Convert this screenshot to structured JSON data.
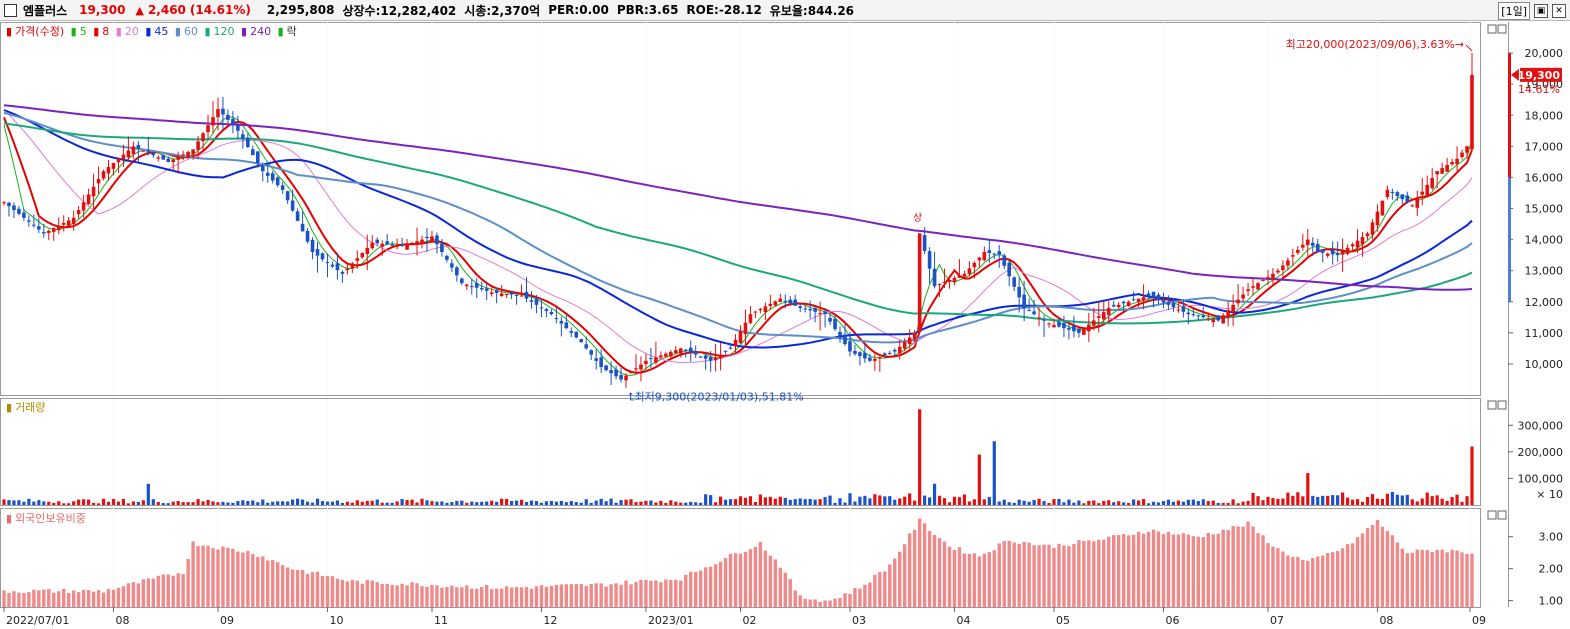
{
  "header": {
    "name": "엠플러스",
    "price": "19,300",
    "arrow": "▲",
    "change": "2,460",
    "change_pct": "(14.61%)",
    "volume": "2,295,808",
    "listed": "상장수:12,282,402",
    "marketcap": "시총:2,370억",
    "per": "PER:0.00",
    "pbr": "PBR:3.65",
    "roe": "ROE:-28.12",
    "reserve": "유보율:844.26",
    "period": "1일"
  },
  "legend": {
    "price_label": "가격(수정)",
    "ma": [
      {
        "label": "5",
        "color": "#19b219"
      },
      {
        "label": "8",
        "color": "#e60000"
      },
      {
        "label": "20",
        "color": "#e27ad6"
      },
      {
        "label": "45",
        "color": "#0a28d8"
      },
      {
        "label": "60",
        "color": "#5e8fc8"
      },
      {
        "label": "120",
        "color": "#1ca87c"
      },
      {
        "label": "240",
        "color": "#7b22c0"
      }
    ],
    "extra": "락",
    "volume_label": "거래량",
    "foreign_label": "외국인보유비중"
  },
  "annotations": {
    "high": "최고20,000(2023/09/06),3.63%",
    "low": "최저9,300(2023/01/03),51.81%",
    "event": "상"
  },
  "price_tag": {
    "value": "19,300",
    "pct": "14.61%"
  },
  "chart_data": [
    {
      "type": "candlestick",
      "title": "가격(수정)",
      "ylim": [
        9000,
        21000
      ],
      "yticks": [
        "10,000",
        "11,000",
        "12,000",
        "13,000",
        "14,000",
        "15,000",
        "16,000",
        "17,000",
        "18,000",
        "19,000",
        "20,000"
      ],
      "xticks": [
        "2022/07/01",
        "08",
        "09",
        "10",
        "11",
        "12",
        "2023/01",
        "02",
        "03",
        "04",
        "05",
        "06",
        "07",
        "08",
        "09"
      ],
      "keypoints": [
        {
          "i": 0,
          "v": 15200
        },
        {
          "i": 8,
          "v": 14200
        },
        {
          "i": 14,
          "v": 14700
        },
        {
          "i": 20,
          "v": 16200
        },
        {
          "i": 26,
          "v": 17000
        },
        {
          "i": 33,
          "v": 16500
        },
        {
          "i": 38,
          "v": 16900
        },
        {
          "i": 43,
          "v": 18200
        },
        {
          "i": 47,
          "v": 17500
        },
        {
          "i": 52,
          "v": 16200
        },
        {
          "i": 56,
          "v": 15600
        },
        {
          "i": 62,
          "v": 13600
        },
        {
          "i": 68,
          "v": 12900
        },
        {
          "i": 74,
          "v": 13900
        },
        {
          "i": 80,
          "v": 13800
        },
        {
          "i": 86,
          "v": 14100
        },
        {
          "i": 92,
          "v": 12600
        },
        {
          "i": 98,
          "v": 12300
        },
        {
          "i": 104,
          "v": 12200
        },
        {
          "i": 110,
          "v": 11600
        },
        {
          "i": 116,
          "v": 10700
        },
        {
          "i": 120,
          "v": 9900
        },
        {
          "i": 124,
          "v": 9500
        },
        {
          "i": 129,
          "v": 10100
        },
        {
          "i": 136,
          "v": 10500
        },
        {
          "i": 142,
          "v": 10100
        },
        {
          "i": 146,
          "v": 10500
        },
        {
          "i": 150,
          "v": 11600
        },
        {
          "i": 156,
          "v": 12100
        },
        {
          "i": 160,
          "v": 11800
        },
        {
          "i": 165,
          "v": 11600
        },
        {
          "i": 170,
          "v": 10400
        },
        {
          "i": 174,
          "v": 10100
        },
        {
          "i": 179,
          "v": 10400
        },
        {
          "i": 183,
          "v": 11000
        },
        {
          "i": 184,
          "v": 14200
        },
        {
          "i": 187,
          "v": 12500
        },
        {
          "i": 193,
          "v": 12900
        },
        {
          "i": 197,
          "v": 13600
        },
        {
          "i": 200,
          "v": 13500
        },
        {
          "i": 205,
          "v": 11800
        },
        {
          "i": 210,
          "v": 11300
        },
        {
          "i": 216,
          "v": 11000
        },
        {
          "i": 222,
          "v": 11800
        },
        {
          "i": 230,
          "v": 12200
        },
        {
          "i": 238,
          "v": 11600
        },
        {
          "i": 244,
          "v": 11400
        },
        {
          "i": 250,
          "v": 12400
        },
        {
          "i": 256,
          "v": 13000
        },
        {
          "i": 262,
          "v": 14000
        },
        {
          "i": 264,
          "v": 13600
        },
        {
          "i": 268,
          "v": 13500
        },
        {
          "i": 274,
          "v": 14200
        },
        {
          "i": 278,
          "v": 15600
        },
        {
          "i": 283,
          "v": 15100
        },
        {
          "i": 288,
          "v": 16200
        },
        {
          "i": 292,
          "v": 16600
        },
        {
          "i": 294,
          "v": 17000
        },
        {
          "i": 295,
          "v": 19300
        }
      ],
      "last_close": 19300,
      "high": 20000,
      "low": 9300,
      "moving_averages": [
        "5",
        "8",
        "20",
        "45",
        "60",
        "120",
        "240"
      ]
    },
    {
      "type": "bar",
      "title": "거래량",
      "unit": "× 10",
      "yticks": [
        "100,000",
        "200,000",
        "300,000"
      ],
      "ylim": [
        0,
        380000
      ],
      "spikes": [
        {
          "i": 29,
          "v": 80000
        },
        {
          "i": 184,
          "v": 360000
        },
        {
          "i": 187,
          "v": 80000
        },
        {
          "i": 196,
          "v": 190000
        },
        {
          "i": 199,
          "v": 240000
        },
        {
          "i": 262,
          "v": 120000
        },
        {
          "i": 295,
          "v": 220000
        }
      ]
    },
    {
      "type": "bar",
      "title": "외국인보유비중",
      "yticks": [
        "1.00",
        "2.00",
        "3.00"
      ],
      "ylim": [
        0.8,
        3.9
      ],
      "keypoints": [
        {
          "i": 0,
          "v": 1.3
        },
        {
          "i": 20,
          "v": 1.3
        },
        {
          "i": 36,
          "v": 1.9
        },
        {
          "i": 38,
          "v": 2.8
        },
        {
          "i": 50,
          "v": 2.5
        },
        {
          "i": 58,
          "v": 2.0
        },
        {
          "i": 70,
          "v": 1.6
        },
        {
          "i": 100,
          "v": 1.4
        },
        {
          "i": 120,
          "v": 1.5
        },
        {
          "i": 136,
          "v": 1.7
        },
        {
          "i": 146,
          "v": 2.4
        },
        {
          "i": 152,
          "v": 2.8
        },
        {
          "i": 156,
          "v": 2.1
        },
        {
          "i": 160,
          "v": 1.1
        },
        {
          "i": 166,
          "v": 1.0
        },
        {
          "i": 172,
          "v": 1.4
        },
        {
          "i": 178,
          "v": 2.1
        },
        {
          "i": 184,
          "v": 3.5
        },
        {
          "i": 190,
          "v": 2.7
        },
        {
          "i": 196,
          "v": 2.4
        },
        {
          "i": 202,
          "v": 2.9
        },
        {
          "i": 210,
          "v": 2.7
        },
        {
          "i": 220,
          "v": 2.9
        },
        {
          "i": 230,
          "v": 3.2
        },
        {
          "i": 240,
          "v": 3.0
        },
        {
          "i": 250,
          "v": 3.4
        },
        {
          "i": 256,
          "v": 2.6
        },
        {
          "i": 262,
          "v": 2.2
        },
        {
          "i": 270,
          "v": 2.7
        },
        {
          "i": 276,
          "v": 3.5
        },
        {
          "i": 282,
          "v": 2.5
        },
        {
          "i": 288,
          "v": 2.6
        },
        {
          "i": 295,
          "v": 2.5
        }
      ]
    }
  ]
}
